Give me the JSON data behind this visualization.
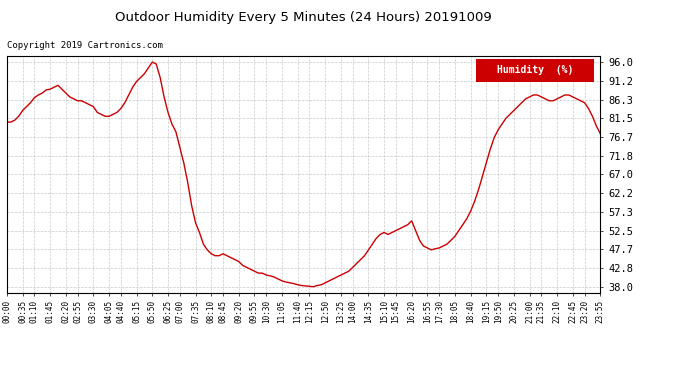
{
  "title": "Outdoor Humidity Every 5 Minutes (24 Hours) 20191009",
  "copyright_text": "Copyright 2019 Cartronics.com",
  "legend_label": "Humidity  (%)",
  "legend_bg": "#cc0000",
  "legend_fg": "#ffffff",
  "line_color": "#cc0000",
  "bg_color": "#ffffff",
  "grid_color": "#bbbbbb",
  "yticks": [
    38.0,
    42.8,
    47.7,
    52.5,
    57.3,
    62.2,
    67.0,
    71.8,
    76.7,
    81.5,
    86.3,
    91.2,
    96.0
  ],
  "ylim": [
    36.5,
    97.5
  ],
  "x_labels": [
    "00:00",
    "00:35",
    "01:10",
    "01:45",
    "02:20",
    "02:55",
    "03:30",
    "04:05",
    "04:40",
    "05:15",
    "05:50",
    "06:25",
    "07:00",
    "07:35",
    "08:10",
    "08:45",
    "09:20",
    "09:55",
    "10:30",
    "11:05",
    "11:40",
    "12:15",
    "12:50",
    "13:25",
    "14:00",
    "14:35",
    "15:10",
    "15:45",
    "16:20",
    "16:55",
    "17:30",
    "18:05",
    "18:40",
    "19:15",
    "19:50",
    "20:25",
    "21:00",
    "21:35",
    "22:10",
    "22:45",
    "23:20",
    "23:55"
  ],
  "humidity_values": [
    80.5,
    80.5,
    81.0,
    82.0,
    83.5,
    84.5,
    85.5,
    86.8,
    87.5,
    88.0,
    88.8,
    89.0,
    89.5,
    90.0,
    89.0,
    88.0,
    87.0,
    86.5,
    86.0,
    86.0,
    85.5,
    85.0,
    84.5,
    83.0,
    82.5,
    82.0,
    82.0,
    82.5,
    83.0,
    84.0,
    85.5,
    87.5,
    89.5,
    91.0,
    92.0,
    93.0,
    94.5,
    96.0,
    95.5,
    92.0,
    87.0,
    83.0,
    80.0,
    78.0,
    74.0,
    70.0,
    65.0,
    59.0,
    54.5,
    52.0,
    49.0,
    47.5,
    46.5,
    46.0,
    46.0,
    46.5,
    46.0,
    45.5,
    45.0,
    44.5,
    43.5,
    43.0,
    42.5,
    42.0,
    41.5,
    41.5,
    41.0,
    40.8,
    40.5,
    40.0,
    39.5,
    39.2,
    39.0,
    38.8,
    38.5,
    38.3,
    38.2,
    38.1,
    38.0,
    38.3,
    38.5,
    39.0,
    39.5,
    40.0,
    40.5,
    41.0,
    41.5,
    42.0,
    43.0,
    44.0,
    45.0,
    46.0,
    47.5,
    49.0,
    50.5,
    51.5,
    52.0,
    51.5,
    52.0,
    52.5,
    53.0,
    53.5,
    54.0,
    55.0,
    52.5,
    50.0,
    48.5,
    48.0,
    47.5,
    47.8,
    48.0,
    48.5,
    49.0,
    50.0,
    51.0,
    52.5,
    54.0,
    55.5,
    57.5,
    60.0,
    63.0,
    66.5,
    70.0,
    73.5,
    76.5,
    78.5,
    80.0,
    81.5,
    82.5,
    83.5,
    84.5,
    85.5,
    86.5,
    87.0,
    87.5,
    87.5,
    87.0,
    86.5,
    86.0,
    86.0,
    86.5,
    87.0,
    87.5,
    87.5,
    87.0,
    86.5,
    86.0,
    85.5,
    84.0,
    82.0,
    79.5,
    77.5
  ]
}
